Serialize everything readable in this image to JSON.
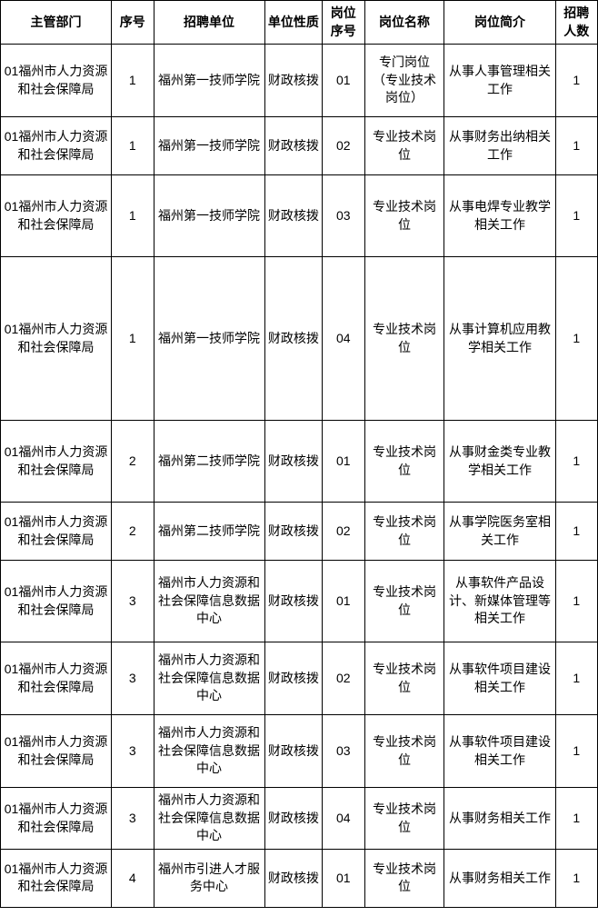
{
  "table": {
    "columns": [
      {
        "key": "dept",
        "label": "主管部门",
        "class": "col-dept"
      },
      {
        "key": "seq",
        "label": "序号",
        "class": "col-seq"
      },
      {
        "key": "unit",
        "label": "招聘单位",
        "class": "col-unit"
      },
      {
        "key": "nature",
        "label": "单位性质",
        "class": "col-nature"
      },
      {
        "key": "posno",
        "label": "岗位序号",
        "class": "col-posno"
      },
      {
        "key": "posname",
        "label": "岗位名称",
        "class": "col-posname"
      },
      {
        "key": "posdesc",
        "label": "岗位简介",
        "class": "col-posdesc"
      },
      {
        "key": "count",
        "label": "招聘人数",
        "class": "col-count"
      }
    ],
    "rows": [
      {
        "dept": "01福州市人力资源和社会保障局",
        "seq": "1",
        "unit": "福州第一技师学院",
        "nature": "财政核拨",
        "posno": "01",
        "posname": "专门岗位（专业技术岗位）",
        "posdesc": "从事人事管理相关工作",
        "count": "1",
        "rowClass": "h-80"
      },
      {
        "dept": "01福州市人力资源和社会保障局",
        "seq": "1",
        "unit": "福州第一技师学院",
        "nature": "财政核拨",
        "posno": "02",
        "posname": "专业技术岗位",
        "posdesc": "从事财务出纳相关工作",
        "count": "1",
        "rowClass": "h-64"
      },
      {
        "dept": "01福州市人力资源和社会保障局",
        "seq": "1",
        "unit": "福州第一技师学院",
        "nature": "财政核拨",
        "posno": "03",
        "posname": "专业技术岗位",
        "posdesc": "从事电焊专业教学相关工作",
        "count": "1",
        "rowClass": "h-90"
      },
      {
        "dept": "01福州市人力资源和社会保障局",
        "seq": "1",
        "unit": "福州第一技师学院",
        "nature": "财政核拨",
        "posno": "04",
        "posname": "专业技术岗位",
        "posdesc": "从事计算机应用教学相关工作",
        "count": "1",
        "rowClass": "h-180"
      },
      {
        "dept": "01福州市人力资源和社会保障局",
        "seq": "2",
        "unit": "福州第二技师学院",
        "nature": "财政核拨",
        "posno": "01",
        "posname": "专业技术岗位",
        "posdesc": "从事财金类专业教学相关工作",
        "count": "1",
        "rowClass": "h-90"
      },
      {
        "dept": "01福州市人力资源和社会保障局",
        "seq": "2",
        "unit": "福州第二技师学院",
        "nature": "财政核拨",
        "posno": "02",
        "posname": "专业技术岗位",
        "posdesc": "从事学院医务室相关工作",
        "count": "1",
        "rowClass": "h-64"
      },
      {
        "dept": "01福州市人力资源和社会保障局",
        "seq": "3",
        "unit": "福州市人力资源和社会保障信息数据中心",
        "nature": "财政核拨",
        "posno": "01",
        "posname": "专业技术岗位",
        "posdesc": "从事软件产品设计、新媒体管理等相关工作",
        "count": "1",
        "rowClass": "h-90"
      },
      {
        "dept": "01福州市人力资源和社会保障局",
        "seq": "3",
        "unit": "福州市人力资源和社会保障信息数据中心",
        "nature": "财政核拨",
        "posno": "02",
        "posname": "专业技术岗位",
        "posdesc": "从事软件项目建设相关工作",
        "count": "1",
        "rowClass": "h-80"
      },
      {
        "dept": "01福州市人力资源和社会保障局",
        "seq": "3",
        "unit": "福州市人力资源和社会保障信息数据中心",
        "nature": "财政核拨",
        "posno": "03",
        "posname": "专业技术岗位",
        "posdesc": "从事软件项目建设相关工作",
        "count": "1",
        "rowClass": "h-80"
      },
      {
        "dept": "01福州市人力资源和社会保障局",
        "seq": "3",
        "unit": "福州市人力资源和社会保障信息数据中心",
        "nature": "财政核拨",
        "posno": "04",
        "posname": "专业技术岗位",
        "posdesc": "从事财务相关工作",
        "count": "1",
        "rowClass": "h-64"
      },
      {
        "dept": "01福州市人力资源和社会保障局",
        "seq": "4",
        "unit": "福州市引进人才服务中心",
        "nature": "财政核拨",
        "posno": "01",
        "posname": "专业技术岗位",
        "posdesc": "从事财务相关工作",
        "count": "1",
        "rowClass": "h-64"
      }
    ],
    "border_color": "#000000",
    "background_color": "#ffffff",
    "header_font_weight": "bold",
    "font_size": 14
  }
}
